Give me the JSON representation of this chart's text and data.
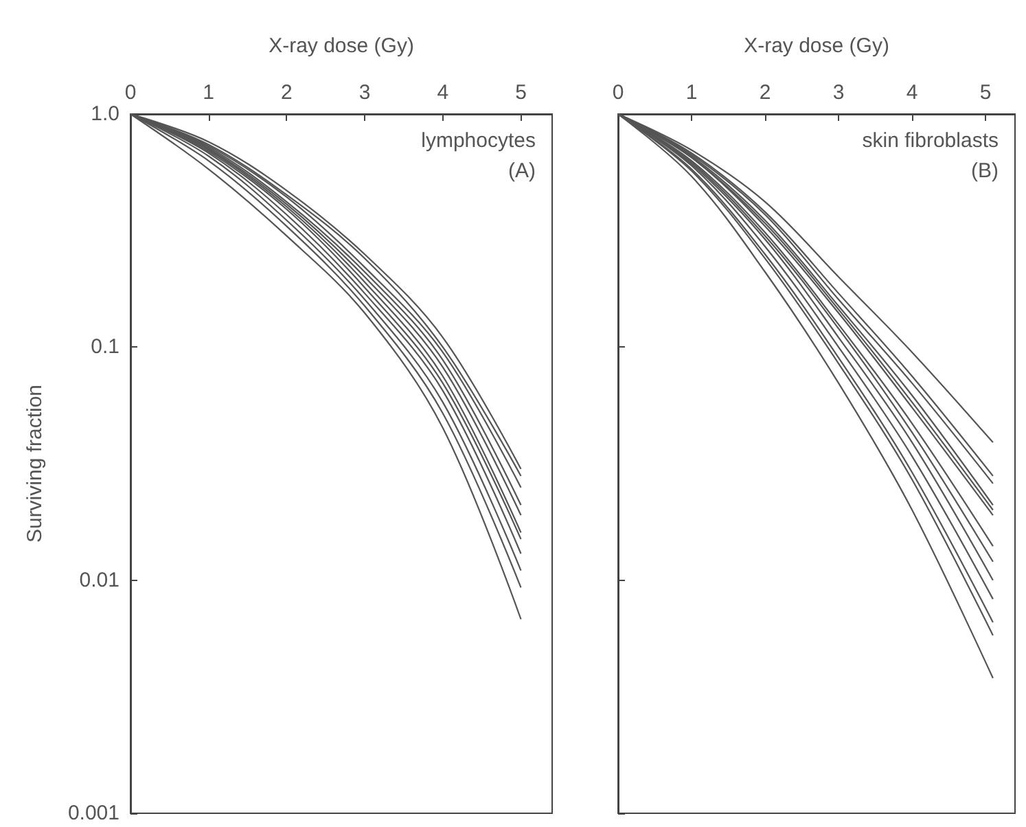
{
  "chart_data": [
    {
      "type": "line",
      "xlabel": "X-ray dose (Gy)",
      "ylabel": "Surviving fraction",
      "log": "y",
      "grid": false,
      "xlim": [
        0,
        5.4
      ],
      "xticks": [
        0,
        1,
        2,
        3,
        4,
        5
      ],
      "ylim": [
        0.001,
        1
      ],
      "yticks": [
        {
          "value": 1,
          "label": "1.0"
        },
        0.1,
        0.01,
        0.001
      ],
      "annotations": [
        "lymphocytes",
        "(A)"
      ],
      "x": [
        0,
        1,
        2,
        3,
        4,
        5
      ],
      "series": [
        {
          "color": "#555555",
          "values": [
            1,
            0.76,
            0.47,
            0.25,
            0.11,
            0.03
          ]
        },
        {
          "color": "#555555",
          "values": [
            1,
            0.74,
            0.45,
            0.24,
            0.1,
            0.028
          ]
        },
        {
          "color": "#555555",
          "values": [
            1,
            0.73,
            0.44,
            0.22,
            0.095,
            0.025
          ]
        },
        {
          "color": "#555555",
          "values": [
            1,
            0.72,
            0.42,
            0.21,
            0.088,
            0.021
          ]
        },
        {
          "color": "#555555",
          "values": [
            1,
            0.71,
            0.41,
            0.2,
            0.082,
            0.019
          ]
        },
        {
          "color": "#555555",
          "values": [
            1,
            0.7,
            0.4,
            0.19,
            0.075,
            0.016
          ]
        },
        {
          "color": "#555555",
          "values": [
            1,
            0.69,
            0.39,
            0.18,
            0.07,
            0.015
          ]
        },
        {
          "color": "#555555",
          "values": [
            1,
            0.68,
            0.37,
            0.17,
            0.065,
            0.013
          ]
        },
        {
          "color": "#555555",
          "values": [
            1,
            0.66,
            0.35,
            0.16,
            0.058,
            0.011
          ]
        },
        {
          "color": "#555555",
          "values": [
            1,
            0.63,
            0.33,
            0.15,
            0.052,
            0.0093
          ]
        },
        {
          "color": "#555555",
          "values": [
            1,
            0.58,
            0.3,
            0.14,
            0.045,
            0.0068
          ]
        }
      ]
    },
    {
      "type": "line",
      "xlabel": "X-ray dose (Gy)",
      "log": "y",
      "grid": false,
      "tick_labels": "x",
      "xlim": [
        0,
        5.4
      ],
      "xticks": [
        0,
        1,
        2,
        3,
        4,
        5
      ],
      "ylim": [
        0.001,
        1
      ],
      "yticks": [
        1,
        0.1,
        0.01,
        0.001
      ],
      "annotations": [
        "skin fibroblasts",
        "(B)"
      ],
      "x": [
        0,
        1,
        2,
        3,
        4,
        5.1
      ],
      "series": [
        {
          "color": "#555555",
          "values": [
            1,
            0.7,
            0.42,
            0.2,
            0.095,
            0.039
          ]
        },
        {
          "color": "#555555",
          "values": [
            1,
            0.68,
            0.38,
            0.17,
            0.075,
            0.028
          ]
        },
        {
          "color": "#555555",
          "values": [
            1,
            0.67,
            0.37,
            0.16,
            0.07,
            0.026
          ]
        },
        {
          "color": "#555555",
          "values": [
            1,
            0.66,
            0.35,
            0.15,
            0.062,
            0.021
          ]
        },
        {
          "color": "#555555",
          "values": [
            1,
            0.65,
            0.34,
            0.145,
            0.058,
            0.02
          ]
        },
        {
          "color": "#555555",
          "values": [
            1,
            0.65,
            0.33,
            0.14,
            0.055,
            0.019
          ]
        },
        {
          "color": "#555555",
          "values": [
            1,
            0.63,
            0.31,
            0.125,
            0.047,
            0.014
          ]
        },
        {
          "color": "#555555",
          "values": [
            1,
            0.62,
            0.3,
            0.12,
            0.043,
            0.012
          ]
        },
        {
          "color": "#555555",
          "values": [
            1,
            0.61,
            0.29,
            0.11,
            0.039,
            0.01
          ]
        },
        {
          "color": "#555555",
          "values": [
            1,
            0.6,
            0.27,
            0.1,
            0.034,
            0.0083
          ]
        },
        {
          "color": "#555555",
          "values": [
            1,
            0.58,
            0.25,
            0.09,
            0.029,
            0.0066
          ]
        },
        {
          "color": "#555555",
          "values": [
            1,
            0.57,
            0.24,
            0.085,
            0.027,
            0.0058
          ]
        },
        {
          "color": "#555555",
          "values": [
            1,
            0.54,
            0.21,
            0.07,
            0.02,
            0.0038
          ]
        }
      ]
    }
  ]
}
